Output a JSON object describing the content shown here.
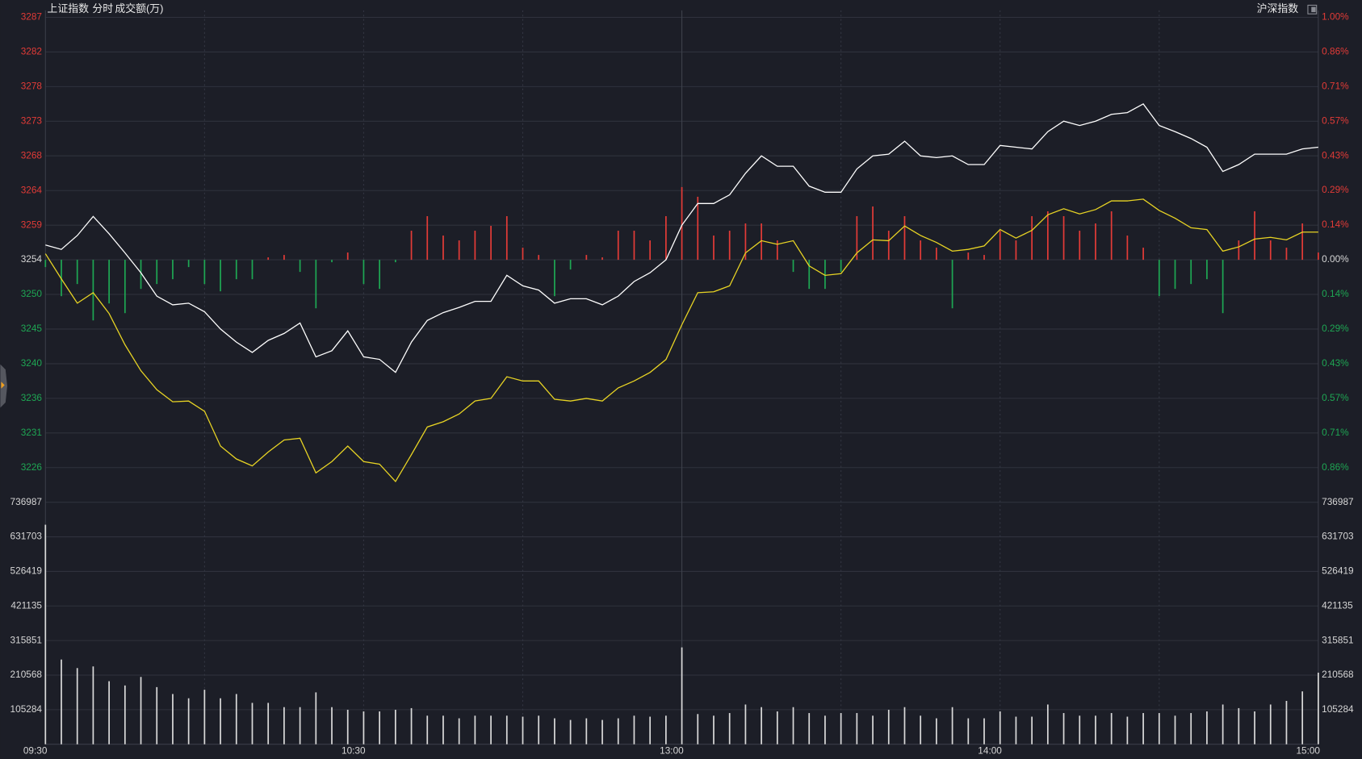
{
  "header": {
    "index_name": "上证指数",
    "mode": "分时",
    "volume_label": "成交额(万)",
    "selector": "沪深指数"
  },
  "chart_data": [
    {
      "type": "line",
      "x": [
        0,
        3,
        6,
        9,
        12,
        15,
        18,
        21,
        24,
        27,
        30,
        33,
        36,
        39,
        42,
        45,
        48,
        51,
        54,
        57,
        60,
        63,
        66,
        69,
        72,
        75,
        78,
        81,
        84,
        87,
        90,
        93,
        96,
        99,
        102,
        105,
        108,
        111,
        114,
        117,
        120,
        123,
        126,
        129,
        132,
        135,
        138,
        141,
        144,
        147,
        150,
        153,
        156,
        159,
        162,
        165,
        168,
        171,
        174,
        177,
        180,
        183,
        186,
        189,
        192,
        195,
        198,
        201,
        204,
        207,
        210,
        213,
        216,
        219,
        222,
        225,
        228,
        231,
        234,
        237,
        240
      ],
      "xlim": [
        0,
        240
      ],
      "ylim": [
        3221.79,
        3286.91
      ],
      "yticks": [
        {
          "value": 3286.91,
          "label": "3287"
        },
        {
          "value": 3282.26,
          "label": "3282"
        },
        {
          "value": 3277.61,
          "label": "3278"
        },
        {
          "value": 3272.96,
          "label": "3273"
        },
        {
          "value": 3268.31,
          "label": "3268"
        },
        {
          "value": 3263.65,
          "label": "3264"
        },
        {
          "value": 3259.0,
          "label": "3259"
        },
        {
          "value": 3254.35,
          "label": "3254"
        },
        {
          "value": 3249.7,
          "label": "3250"
        },
        {
          "value": 3245.05,
          "label": "3245"
        },
        {
          "value": 3240.39,
          "label": "3240"
        },
        {
          "value": 3235.74,
          "label": "3236"
        },
        {
          "value": 3231.09,
          "label": "3231"
        },
        {
          "value": 3226.44,
          "label": "3226"
        }
      ],
      "y2lim": [
        -1.0,
        1.0
      ],
      "y2ticks": [
        {
          "value": 1.0,
          "label": "1.00%"
        },
        {
          "value": 0.857,
          "label": "0.86%"
        },
        {
          "value": 0.714,
          "label": "0.71%"
        },
        {
          "value": 0.571,
          "label": "0.57%"
        },
        {
          "value": 0.429,
          "label": "0.43%"
        },
        {
          "value": 0.286,
          "label": "0.29%"
        },
        {
          "value": 0.143,
          "label": "0.14%"
        },
        {
          "value": 0,
          "label": "0.00%"
        },
        {
          "value": -0.143,
          "label": "0.14%"
        },
        {
          "value": -0.286,
          "label": "0.29%"
        },
        {
          "value": -0.429,
          "label": "0.43%"
        },
        {
          "value": -0.571,
          "label": "0.57%"
        },
        {
          "value": -0.714,
          "label": "0.71%"
        },
        {
          "value": -0.857,
          "label": "0.86%"
        }
      ],
      "grid": true,
      "up_color": "#e23b37",
      "down_color": "#1ea653",
      "series": [
        {
          "type": "bar",
          "axis": "y2",
          "values": [
            -0.03,
            -0.15,
            -0.1,
            -0.25,
            -0.18,
            -0.22,
            -0.12,
            -0.1,
            -0.08,
            -0.03,
            -0.1,
            -0.13,
            -0.08,
            -0.08,
            0.01,
            0.02,
            -0.05,
            -0.2,
            -0.01,
            0.03,
            -0.1,
            -0.12,
            -0.01,
            0.12,
            0.18,
            0.1,
            0.08,
            0.12,
            0.14,
            0.18,
            0.05,
            0.02,
            -0.15,
            -0.04,
            0.02,
            0.01,
            0.12,
            0.12,
            0.08,
            0.18,
            0.3,
            0.26,
            0.1,
            0.12,
            0.15,
            0.15,
            0.08,
            -0.05,
            -0.12,
            -0.12,
            -0.05,
            0.18,
            0.22,
            0.12,
            0.18,
            0.08,
            0.05,
            -0.2,
            0.03,
            0.02,
            0.12,
            0.08,
            0.18,
            0.2,
            0.18,
            0.12,
            0.15,
            0.2,
            0.1,
            0.05,
            -0.15,
            -0.12,
            -0.1,
            -0.08,
            -0.22,
            0.08,
            0.2,
            0.08,
            0.05,
            0.15,
            0.03
          ]
        },
        {
          "color": "#ffffff",
          "values": [
            3256.33,
            3255.75,
            3257.61,
            3260.17,
            3257.84,
            3255.28,
            3252.61,
            3249.47,
            3248.3,
            3248.53,
            3247.37,
            3245.05,
            3243.3,
            3241.91,
            3243.53,
            3244.46,
            3245.86,
            3241.32,
            3242.14,
            3244.81,
            3241.32,
            3240.98,
            3239.23,
            3243.3,
            3246.21,
            3247.26,
            3247.95,
            3248.77,
            3248.77,
            3252.26,
            3250.86,
            3250.28,
            3248.53,
            3249.12,
            3249.12,
            3248.3,
            3249.47,
            3251.44,
            3252.61,
            3254.35,
            3259.0,
            3261.91,
            3261.91,
            3263.07,
            3265.98,
            3268.31,
            3266.91,
            3266.91,
            3264.24,
            3263.42,
            3263.42,
            3266.56,
            3268.31,
            3268.54,
            3270.28,
            3268.31,
            3268.07,
            3268.31,
            3267.14,
            3267.14,
            3269.7,
            3269.47,
            3269.24,
            3271.56,
            3272.96,
            3272.38,
            3272.96,
            3273.89,
            3274.12,
            3275.28,
            3272.38,
            3271.56,
            3270.63,
            3269.47,
            3266.21,
            3267.14,
            3268.54,
            3268.54,
            3268.54,
            3269.24,
            3269.47
          ]
        },
        {
          "color": "#e8d424",
          "values": [
            3255.16,
            3251.79,
            3248.53,
            3249.93,
            3247.14,
            3242.95,
            3239.46,
            3236.9,
            3235.28,
            3235.39,
            3234.0,
            3229.34,
            3227.6,
            3226.67,
            3228.53,
            3230.16,
            3230.39,
            3225.74,
            3227.25,
            3229.34,
            3227.25,
            3226.9,
            3224.58,
            3228.18,
            3231.9,
            3232.6,
            3233.65,
            3235.39,
            3235.74,
            3238.65,
            3238.07,
            3238.07,
            3235.62,
            3235.39,
            3235.74,
            3235.39,
            3237.14,
            3238.07,
            3239.23,
            3240.97,
            3245.63,
            3249.93,
            3250.05,
            3250.86,
            3255.28,
            3256.91,
            3256.44,
            3256.91,
            3253.54,
            3252.26,
            3252.49,
            3255.28,
            3257.03,
            3256.91,
            3258.89,
            3257.61,
            3256.68,
            3255.51,
            3255.75,
            3256.21,
            3258.42,
            3257.26,
            3258.3,
            3260.4,
            3261.21,
            3260.51,
            3261.1,
            3262.26,
            3262.26,
            3262.49,
            3260.98,
            3259.93,
            3258.65,
            3258.42,
            3255.51,
            3256.09,
            3257.14,
            3257.37,
            3257.03,
            3258.07,
            3258.07
          ]
        }
      ]
    },
    {
      "type": "bar",
      "x": [
        0,
        3,
        6,
        9,
        12,
        15,
        18,
        21,
        24,
        27,
        30,
        33,
        36,
        39,
        42,
        45,
        48,
        51,
        54,
        57,
        60,
        63,
        66,
        69,
        72,
        75,
        78,
        81,
        84,
        87,
        90,
        93,
        96,
        99,
        102,
        105,
        108,
        111,
        114,
        117,
        120,
        123,
        126,
        129,
        132,
        135,
        138,
        141,
        144,
        147,
        150,
        153,
        156,
        159,
        162,
        165,
        168,
        171,
        174,
        177,
        180,
        183,
        186,
        189,
        192,
        195,
        198,
        201,
        204,
        207,
        210,
        213,
        216,
        219,
        222,
        225,
        228,
        231,
        234,
        237,
        240
      ],
      "values": [
        668500,
        258000,
        232000,
        237000,
        192000,
        179000,
        205000,
        174000,
        153000,
        140000,
        166000,
        140000,
        153000,
        126000,
        126000,
        113000,
        113000,
        158000,
        113000,
        105000,
        100000,
        100000,
        105000,
        110000,
        87000,
        87000,
        79000,
        87000,
        87000,
        87000,
        84000,
        87000,
        79000,
        74000,
        79000,
        74000,
        79000,
        87000,
        84000,
        87000,
        295000,
        92000,
        87000,
        95000,
        121000,
        113000,
        100000,
        113000,
        95000,
        87000,
        95000,
        95000,
        87000,
        105000,
        113000,
        87000,
        79000,
        113000,
        79000,
        79000,
        100000,
        84000,
        84000,
        121000,
        95000,
        87000,
        87000,
        95000,
        84000,
        95000,
        95000,
        87000,
        95000,
        100000,
        121000,
        110000,
        100000,
        121000,
        132000,
        161000,
        218000
      ],
      "color": "#d9d9d9",
      "xlim": [
        0,
        240
      ],
      "xticks": [
        {
          "value": 0,
          "label": "09:30"
        },
        {
          "value": 60,
          "label": "10:30"
        },
        {
          "value": 120,
          "label": "13:00"
        },
        {
          "value": 180,
          "label": "14:00"
        },
        {
          "value": 240,
          "label": "15:00"
        }
      ],
      "ylim": [
        0,
        736987
      ],
      "yticks": [
        736987,
        631703,
        526419,
        421135,
        315851,
        210568,
        105284
      ],
      "grid": true
    }
  ]
}
